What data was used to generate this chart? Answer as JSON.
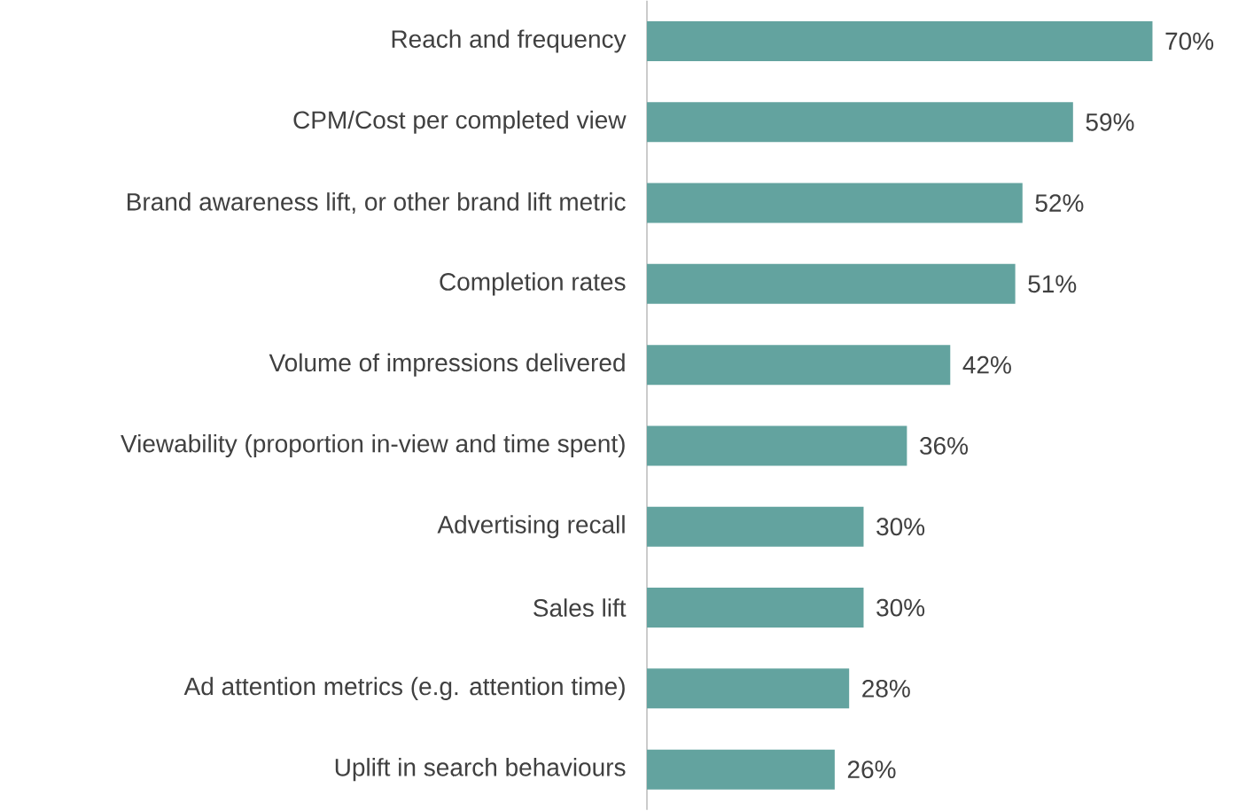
{
  "chart_data": {
    "type": "bar",
    "orientation": "horizontal",
    "categories": [
      "Reach and frequency",
      "CPM/Cost per completed view",
      "Brand awareness lift, or other brand lift metric",
      "Completion rates",
      "Volume of impressions delivered",
      "Viewability (proportion in-view and time spent)",
      "Advertising recall",
      "Sales lift",
      "Ad attention metrics (e.g. attention time)",
      "Uplift in search behaviours"
    ],
    "values": [
      70,
      59,
      52,
      51,
      42,
      36,
      30,
      30,
      28,
      26
    ],
    "value_labels": [
      "70%",
      "59%",
      "52%",
      "51%",
      "42%",
      "36%",
      "30%",
      "30%",
      "28%",
      "26%"
    ],
    "color": "#63a39f"
  }
}
